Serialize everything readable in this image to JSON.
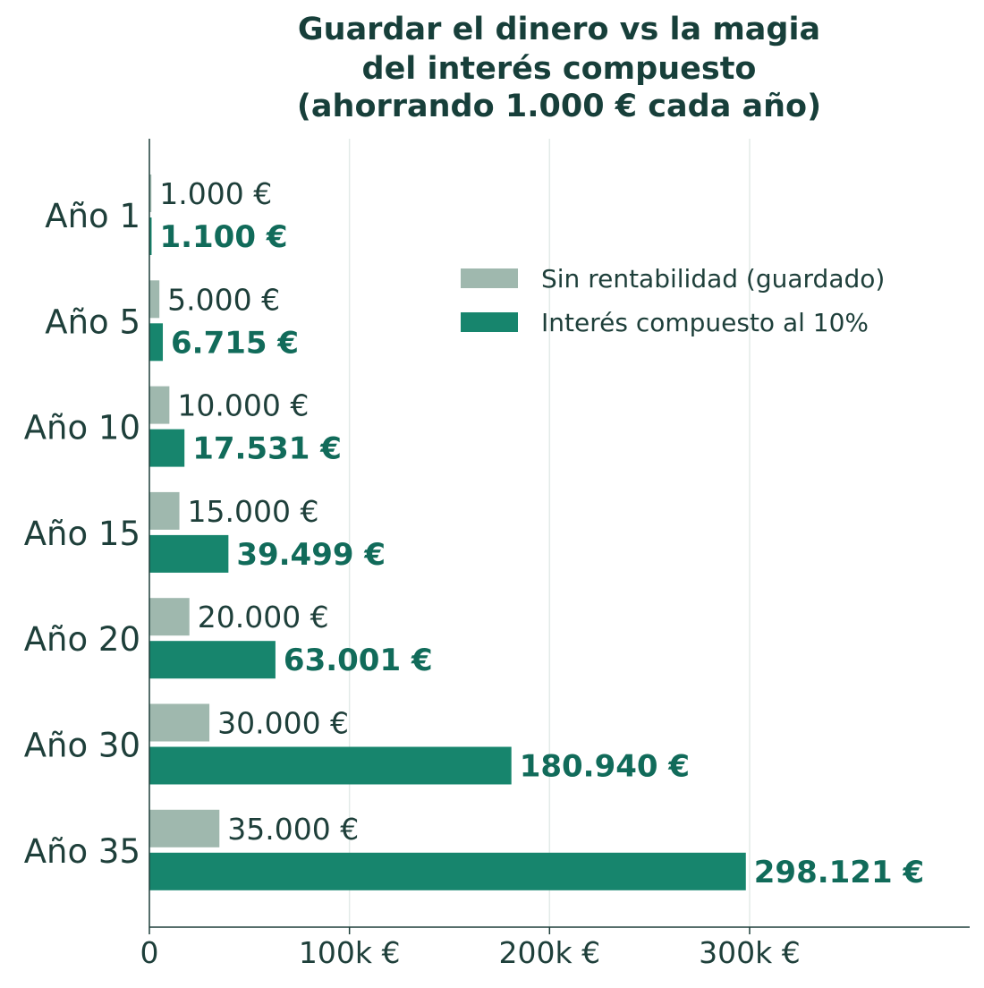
{
  "colors": {
    "saved": "#9fb8ae",
    "compound": "#17856d",
    "compound_label": "#116b5a",
    "text": "#1e3f3a",
    "title": "#173f3a",
    "grid": "#e3ebe8",
    "axis": "#1e3f3a"
  },
  "chart_data": {
    "type": "bar",
    "orientation": "horizontal",
    "title_lines": [
      "Guardar el dinero vs la magia",
      "del interés compuesto",
      "(ahorrando 1.000 € cada año)"
    ],
    "categories": [
      "Año 1",
      "Año 5",
      "Año 10",
      "Año 15",
      "Año 20",
      "Año 30",
      "Año 35"
    ],
    "series": [
      {
        "name": "Sin rentabilidad (guardado)",
        "values": [
          1000,
          5000,
          10000,
          15000,
          20000,
          30000,
          35000
        ],
        "labels": [
          "1.000 €",
          "5.000 €",
          "10.000 €",
          "15.000 €",
          "20.000 €",
          "30.000 €",
          "35.000 €"
        ]
      },
      {
        "name": "Interés compuesto al 10%",
        "values": [
          1100,
          6715,
          17531,
          39499,
          63001,
          180940,
          298121
        ],
        "labels": [
          "1.100 €",
          "6.715 €",
          "17.531 €",
          "39.499 €",
          "63.001 €",
          "180.940 €",
          "298.121 €"
        ]
      }
    ],
    "x_ticks": [
      0,
      100000,
      200000,
      300000
    ],
    "x_tick_labels": [
      "0",
      "100k €",
      "200k €",
      "300k €"
    ],
    "xlim": [
      0,
      410000
    ],
    "grid": "vertical",
    "legend": "upper right"
  }
}
